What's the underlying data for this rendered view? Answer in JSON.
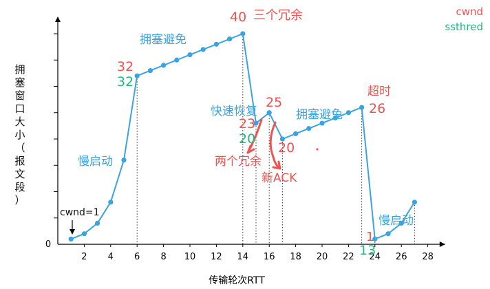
{
  "chart_data": {
    "type": "line",
    "xlabel": "传输轮次RTT",
    "ylabel": "拥塞窗口大小（报文段）",
    "x_ticks": [
      0,
      2,
      4,
      6,
      8,
      10,
      12,
      14,
      16,
      18,
      20,
      22,
      24,
      26,
      28
    ],
    "y_zero_label": "0",
    "xlim": [
      0,
      29
    ],
    "ylim": [
      0,
      44
    ],
    "grid": false,
    "legend_position": "top-right",
    "legend": [
      {
        "label": "cwnd",
        "color": "#ef5350"
      },
      {
        "label": "ssthred",
        "color": "#1abc7c"
      }
    ],
    "series": [
      {
        "color": "#3aa3e0",
        "points": [
          [
            1,
            1
          ],
          [
            2,
            2
          ],
          [
            3,
            4
          ],
          [
            4,
            8
          ],
          [
            5,
            16
          ],
          [
            6,
            32
          ],
          [
            7,
            33
          ],
          [
            8,
            34
          ],
          [
            9,
            35
          ],
          [
            10,
            36
          ],
          [
            11,
            37
          ],
          [
            12,
            38
          ],
          [
            13,
            39
          ],
          [
            14,
            40
          ],
          [
            15,
            23
          ],
          [
            16,
            25
          ],
          [
            17,
            20
          ],
          [
            18,
            21
          ],
          [
            19,
            22
          ],
          [
            20,
            23
          ],
          [
            21,
            24
          ],
          [
            22,
            25
          ],
          [
            23,
            26
          ],
          [
            24,
            1
          ],
          [
            25,
            2
          ],
          [
            26,
            4
          ],
          [
            27,
            8
          ]
        ]
      }
    ],
    "dotted_guides_x": [
      6,
      14,
      15,
      16,
      17,
      23,
      24,
      27
    ],
    "annotations": [
      {
        "text": "cwnd=1",
        "color": "dark"
      },
      {
        "text": "慢启动",
        "color": "blue"
      },
      {
        "text": "32",
        "color": "red"
      },
      {
        "text": "32",
        "color": "green"
      },
      {
        "text": "拥塞避免",
        "color": "blue"
      },
      {
        "text": "40",
        "color": "red"
      },
      {
        "text": "三个冗余",
        "color": "red"
      },
      {
        "text": "快速恢复",
        "color": "blue"
      },
      {
        "text": "25",
        "color": "red"
      },
      {
        "text": "23",
        "color": "red"
      },
      {
        "text": "20",
        "color": "green"
      },
      {
        "text": "20",
        "color": "red"
      },
      {
        "text": "两个冗余",
        "color": "red"
      },
      {
        "text": "新ACK",
        "color": "red"
      },
      {
        "text": "拥塞避免",
        "color": "blue"
      },
      {
        "text": "超时",
        "color": "red"
      },
      {
        "text": "26",
        "color": "red"
      },
      {
        "text": "1",
        "color": "red"
      },
      {
        "text": "13",
        "color": "green"
      },
      {
        "text": "慢启动",
        "color": "blue"
      }
    ]
  }
}
